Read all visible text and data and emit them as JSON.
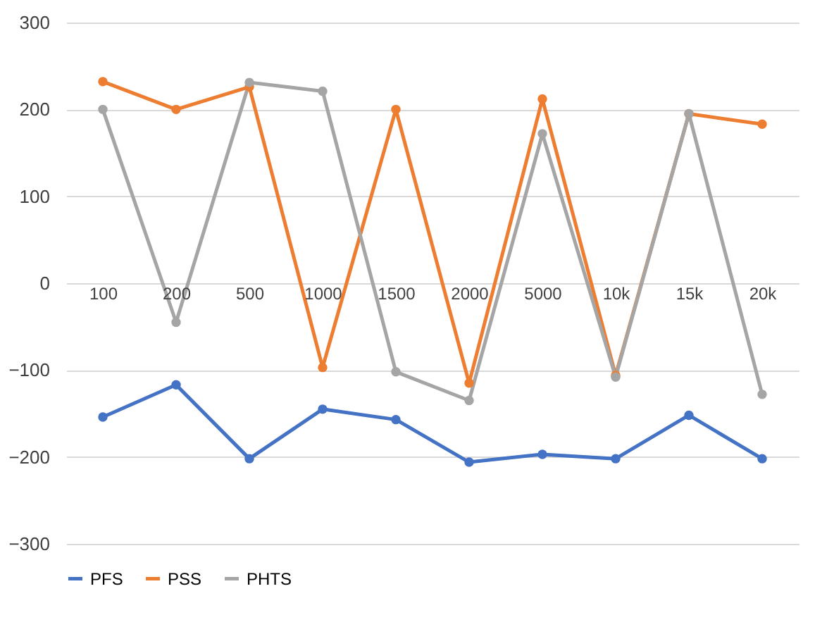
{
  "chart_data": {
    "type": "line",
    "categories": [
      "100",
      "200",
      "500",
      "1000",
      "1500",
      "2000",
      "5000",
      "10k",
      "15k",
      "20k"
    ],
    "series": [
      {
        "name": "PFS",
        "color": "#4472c4",
        "values": [
          -154,
          -117,
          -202,
          -145,
          -157,
          -206,
          -197,
          -202,
          -152,
          -202
        ]
      },
      {
        "name": "PSS",
        "color": "#ed7d31",
        "values": [
          232,
          200,
          226,
          -97,
          200,
          -115,
          212,
          -106,
          195,
          183
        ]
      },
      {
        "name": "PHTS",
        "color": "#a5a5a5",
        "values": [
          200,
          -45,
          231,
          221,
          -102,
          -135,
          172,
          -108,
          195,
          -128
        ]
      }
    ],
    "ylim": [
      -300,
      300
    ],
    "yticks": [
      -300,
      -200,
      -100,
      0,
      100,
      200,
      300
    ],
    "grid": "y",
    "legend": "bottom",
    "marker": "circle",
    "line_style": "solid"
  }
}
